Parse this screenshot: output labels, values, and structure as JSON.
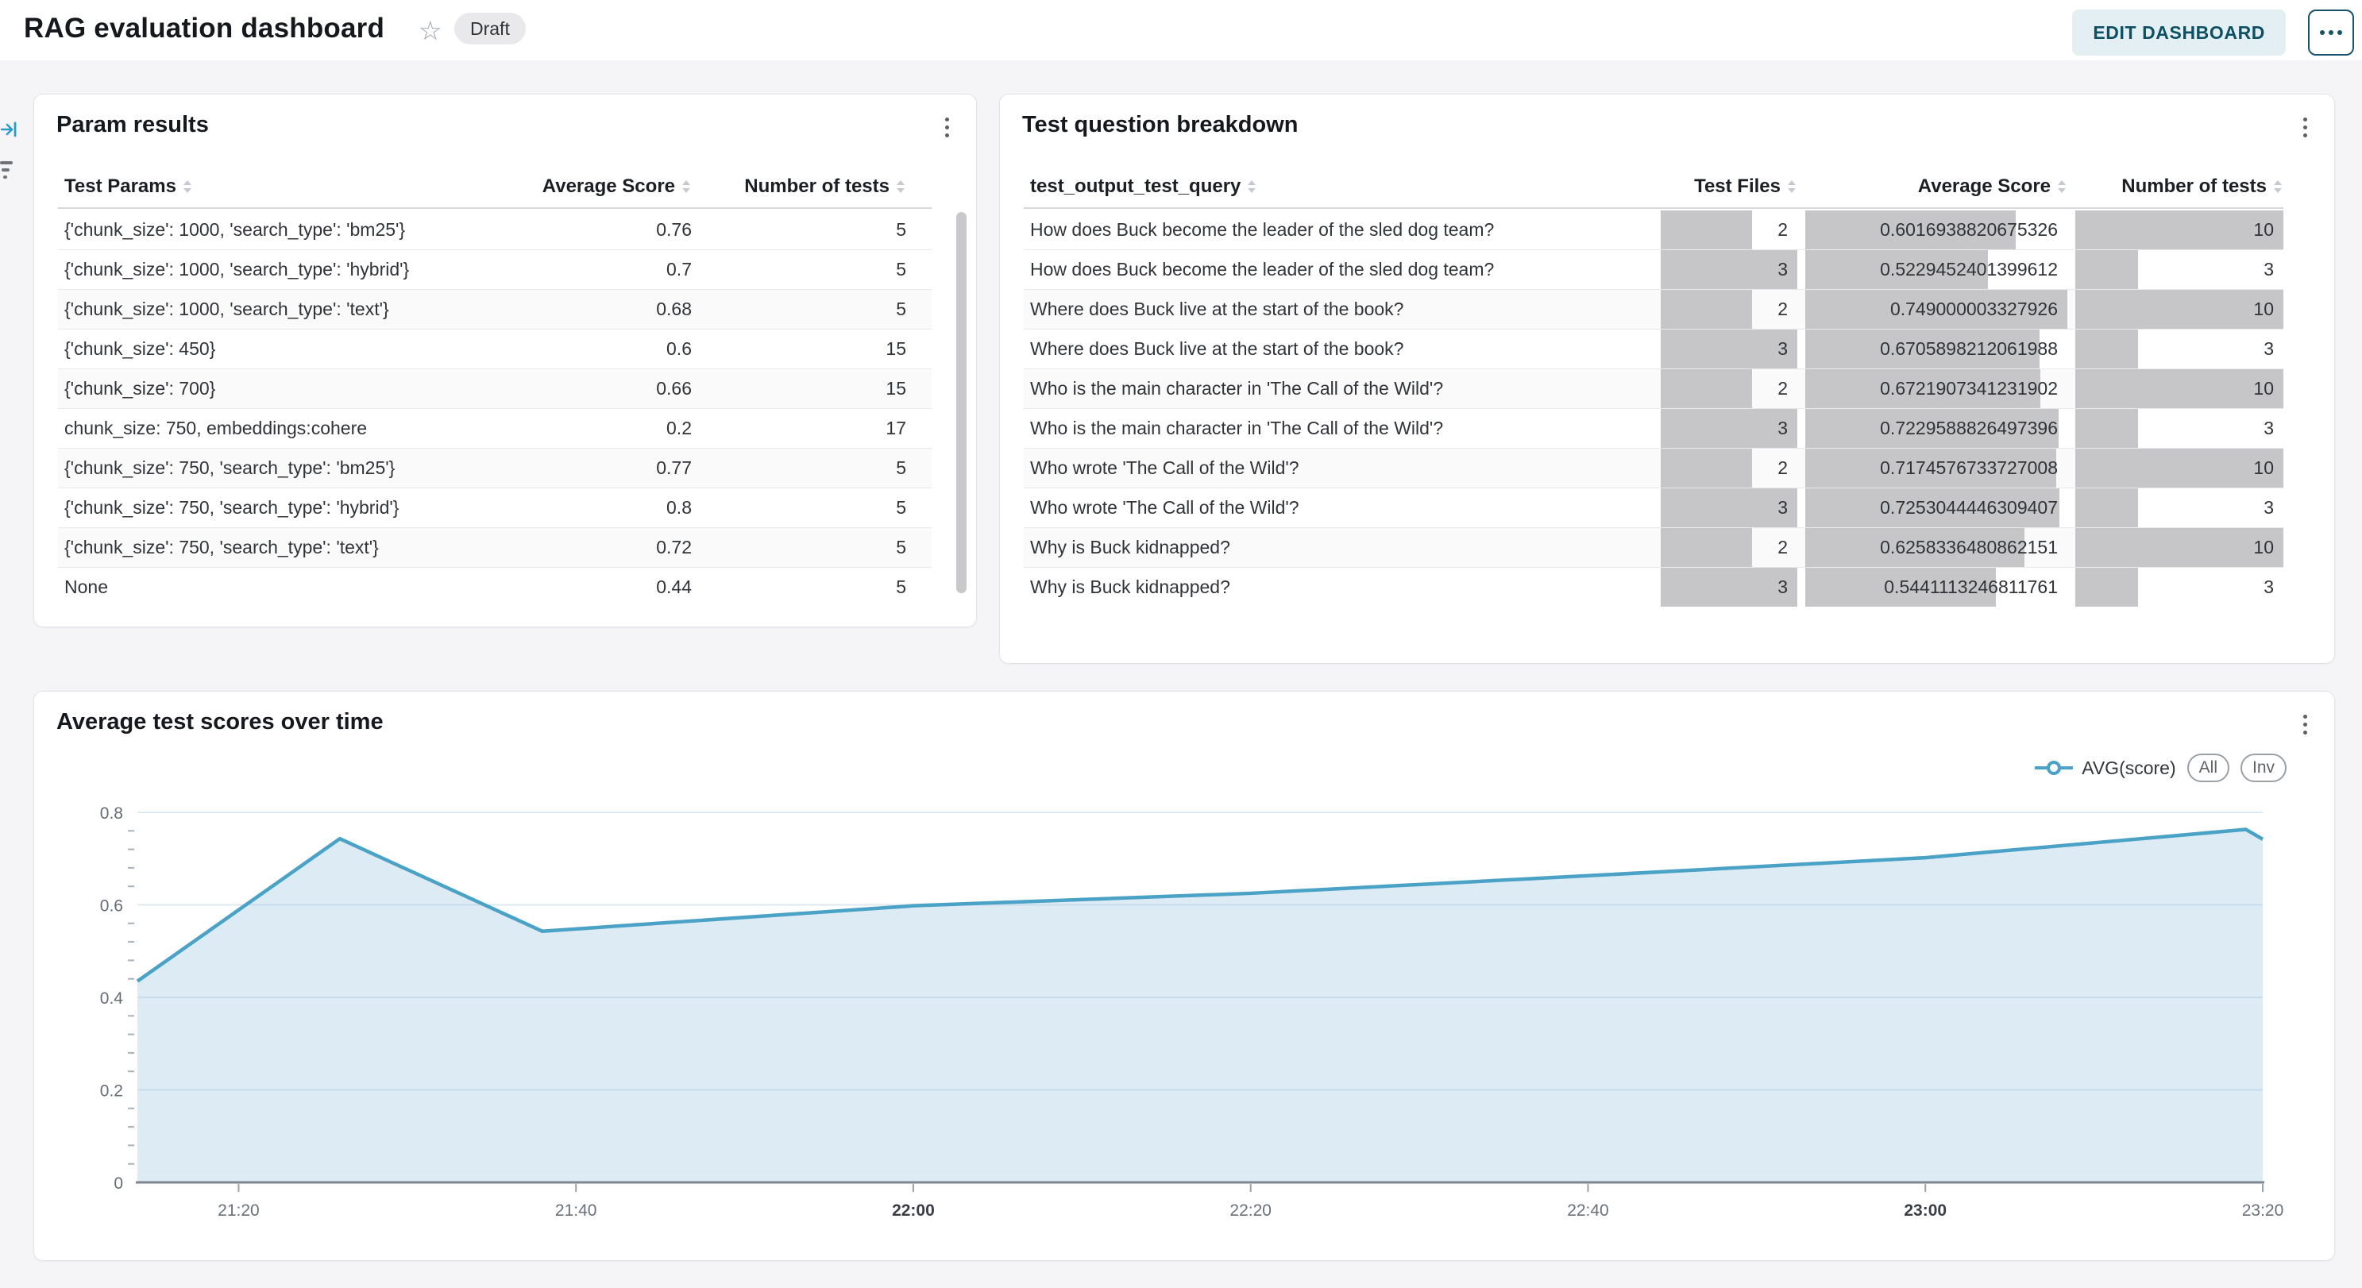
{
  "header": {
    "title": "RAG evaluation dashboard",
    "status_badge": "Draft",
    "edit_button": "EDIT DASHBOARD"
  },
  "param_results": {
    "title": "Param results",
    "columns": [
      "Test Params",
      "Average Score",
      "Number of tests"
    ],
    "rows": [
      {
        "params": "{'chunk_size': 1000, 'search_type': 'bm25'}",
        "score": "0.76",
        "tests": "5"
      },
      {
        "params": "{'chunk_size': 1000, 'search_type': 'hybrid'}",
        "score": "0.7",
        "tests": "5"
      },
      {
        "params": "{'chunk_size': 1000, 'search_type': 'text'}",
        "score": "0.68",
        "tests": "5"
      },
      {
        "params": "{'chunk_size': 450}",
        "score": "0.6",
        "tests": "15"
      },
      {
        "params": "{'chunk_size': 700}",
        "score": "0.66",
        "tests": "15"
      },
      {
        "params": "chunk_size: 750, embeddings:cohere",
        "score": "0.2",
        "tests": "17"
      },
      {
        "params": "{'chunk_size': 750, 'search_type': 'bm25'}",
        "score": "0.77",
        "tests": "5"
      },
      {
        "params": "{'chunk_size': 750, 'search_type': 'hybrid'}",
        "score": "0.8",
        "tests": "5"
      },
      {
        "params": "{'chunk_size': 750, 'search_type': 'text'}",
        "score": "0.72",
        "tests": "5"
      },
      {
        "params": "None",
        "score": "0.44",
        "tests": "5"
      }
    ]
  },
  "question_breakdown": {
    "title": "Test question breakdown",
    "columns": [
      "test_output_test_query",
      "Test Files",
      "Average Score",
      "Number of tests"
    ],
    "bar_max": {
      "files": 3,
      "score": 0.749000003327926,
      "tests": 10
    },
    "rows": [
      {
        "query": "How does Buck become the leader of the sled dog team?",
        "files": "2",
        "score": "0.6016938820675326",
        "tests": "10"
      },
      {
        "query": "How does Buck become the leader of the sled dog team?",
        "files": "3",
        "score": "0.5229452401399612",
        "tests": "3"
      },
      {
        "query": "Where does Buck live at the start of the book?",
        "files": "2",
        "score": "0.749000003327926",
        "tests": "10"
      },
      {
        "query": "Where does Buck live at the start of the book?",
        "files": "3",
        "score": "0.6705898212061988",
        "tests": "3"
      },
      {
        "query": "Who is the main character in 'The Call of the Wild'?",
        "files": "2",
        "score": "0.6721907341231902",
        "tests": "10"
      },
      {
        "query": "Who is the main character in 'The Call of the Wild'?",
        "files": "3",
        "score": "0.7229588826497396",
        "tests": "3"
      },
      {
        "query": "Who wrote 'The Call of the Wild'?",
        "files": "2",
        "score": "0.7174576733727008",
        "tests": "10"
      },
      {
        "query": "Who wrote 'The Call of the Wild'?",
        "files": "3",
        "score": "0.7253044446309407",
        "tests": "3"
      },
      {
        "query": "Why is Buck kidnapped?",
        "files": "2",
        "score": "0.6258336480862151",
        "tests": "10"
      },
      {
        "query": "Why is Buck kidnapped?",
        "files": "3",
        "score": "0.5441113246811761",
        "tests": "3"
      }
    ]
  },
  "chart_panel": {
    "title": "Average test scores over time",
    "controls": {
      "all": "All",
      "inv": "Inv"
    }
  },
  "chart_data": {
    "type": "area",
    "title": "Average test scores over time",
    "series": [
      {
        "name": "AVG(score)",
        "points": [
          [
            "21:14",
            0.435
          ],
          [
            "21:26",
            0.743
          ],
          [
            "21:38",
            0.543
          ],
          [
            "22:00",
            0.598
          ],
          [
            "22:20",
            0.625
          ],
          [
            "22:40",
            0.663
          ],
          [
            "23:00",
            0.702
          ],
          [
            "23:19",
            0.763
          ],
          [
            "23:20",
            0.742
          ]
        ]
      }
    ],
    "xticks": [
      {
        "label": "21:20",
        "bold": false
      },
      {
        "label": "21:40",
        "bold": false
      },
      {
        "label": "22:00",
        "bold": true
      },
      {
        "label": "22:20",
        "bold": false
      },
      {
        "label": "22:40",
        "bold": false
      },
      {
        "label": "23:00",
        "bold": true
      },
      {
        "label": "23:20",
        "bold": false
      }
    ],
    "yticks": [
      0,
      0.2,
      0.4,
      0.6,
      0.8
    ],
    "ylim": [
      0,
      0.8
    ],
    "grid": true,
    "legend_position": "top-right",
    "line_color": "#4AA2C6",
    "fill_color": "#DCEBF4"
  },
  "colors": {
    "accent_teal": "#0d5063",
    "bar_gray": "#c6c6c8",
    "rail_blue": "#2b9dc9"
  }
}
